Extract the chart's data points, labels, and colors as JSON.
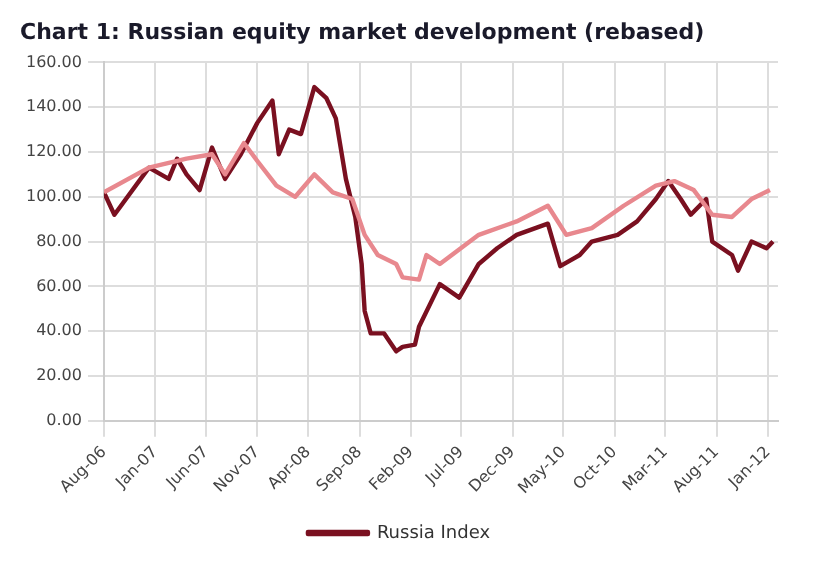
{
  "chart_data": {
    "type": "line",
    "title": "Chart 1: Russian equity market development (rebased)",
    "xlim": [
      "2006-08-01",
      "2012-01-31"
    ],
    "xticks": [
      {
        "value": "2006-08",
        "label": "Aug-06"
      },
      {
        "value": "2007-01",
        "label": "Jan-07"
      },
      {
        "value": "2007-06",
        "label": "Jun-07"
      },
      {
        "value": "2007-11",
        "label": "Nov-07"
      },
      {
        "value": "2008-04",
        "label": "Apr-08"
      },
      {
        "value": "2008-09",
        "label": "Sep-08"
      },
      {
        "value": "2009-02",
        "label": "Feb-09"
      },
      {
        "value": "2009-07",
        "label": "Jul-09"
      },
      {
        "value": "2009-12",
        "label": "Dec-09"
      },
      {
        "value": "2010-05",
        "label": "May-10"
      },
      {
        "value": "2010-10",
        "label": "Oct-10"
      },
      {
        "value": "2011-03",
        "label": "Mar-11"
      },
      {
        "value": "2011-08",
        "label": "Aug-11"
      },
      {
        "value": "2012-01",
        "label": "Jan-12"
      }
    ],
    "ylim": [
      0,
      160
    ],
    "yticks": [
      {
        "value": 0,
        "label": "0.00"
      },
      {
        "value": 20,
        "label": "20.00"
      },
      {
        "value": 40,
        "label": "40.00"
      },
      {
        "value": 60,
        "label": "60.00"
      },
      {
        "value": 80,
        "label": "80.00"
      },
      {
        "value": 100,
        "label": "100.00"
      },
      {
        "value": 120,
        "label": "120.00"
      },
      {
        "value": 140,
        "label": "140.00"
      },
      {
        "value": 160,
        "label": "160.00"
      }
    ],
    "grid": true,
    "legend": "bottom",
    "marker": "none",
    "line_style": "solid",
    "series": [
      {
        "color": "#e8888e",
        "x": [
          "2006-08-01",
          "2006-12-13",
          "2007-04-04",
          "2007-06-19",
          "2007-07-28",
          "2007-09-22",
          "2007-11-01",
          "2007-12-28",
          "2008-02-22",
          "2008-04-19",
          "2008-06-13",
          "2008-08-10",
          "2008-09-16",
          "2008-10-25",
          "2008-12-19",
          "2009-01-07",
          "2009-02-25",
          "2009-03-19",
          "2009-04-28",
          "2009-08-22",
          "2009-12-13",
          "2010-03-16",
          "2010-05-10",
          "2010-07-25",
          "2010-10-28",
          "2011-02-01",
          "2011-03-28",
          "2011-05-25",
          "2011-07-19",
          "2011-09-16",
          "2011-11-13",
          "2012-01-07"
        ],
        "values": [
          102,
          113,
          117,
          119,
          110,
          124,
          116,
          105,
          100,
          110,
          102,
          99,
          83,
          74,
          70,
          64,
          63,
          74,
          70,
          83,
          89,
          96,
          83,
          86,
          96,
          105,
          107,
          103,
          92,
          91,
          99,
          103
        ]
      },
      {
        "name": "Russia Index",
        "color": "#7a1020",
        "x": [
          "2006-08-01",
          "2006-09-01",
          "2006-12-13",
          "2007-02-10",
          "2007-03-07",
          "2007-04-04",
          "2007-05-13",
          "2007-06-19",
          "2007-07-28",
          "2007-09-13",
          "2007-11-01",
          "2007-12-16",
          "2008-01-04",
          "2008-02-04",
          "2008-03-10",
          "2008-04-19",
          "2008-05-25",
          "2008-06-22",
          "2008-07-22",
          "2008-08-19",
          "2008-09-07",
          "2008-09-16",
          "2008-10-04",
          "2008-11-13",
          "2008-12-19",
          "2009-01-07",
          "2009-02-13",
          "2009-02-25",
          "2009-04-28",
          "2009-06-25",
          "2009-08-22",
          "2009-10-16",
          "2009-12-13",
          "2010-03-16",
          "2010-04-22",
          "2010-06-19",
          "2010-07-25",
          "2010-10-10",
          "2010-12-07",
          "2011-02-01",
          "2011-03-10",
          "2011-04-16",
          "2011-05-16",
          "2011-07-01",
          "2011-07-19",
          "2011-09-16",
          "2011-10-04",
          "2011-11-13",
          "2011-12-28",
          "2012-01-16"
        ],
        "values": [
          102,
          92,
          113,
          108,
          117,
          110,
          103,
          122,
          108,
          119,
          133,
          143,
          119,
          130,
          128,
          149,
          144,
          135,
          108,
          91,
          70,
          49,
          39,
          39,
          31,
          33,
          34,
          42,
          61,
          55,
          70,
          77,
          83,
          88,
          69,
          74,
          80,
          83,
          89,
          99,
          107,
          99,
          92,
          99,
          80,
          74,
          67,
          80,
          77,
          80
        ]
      }
    ]
  }
}
